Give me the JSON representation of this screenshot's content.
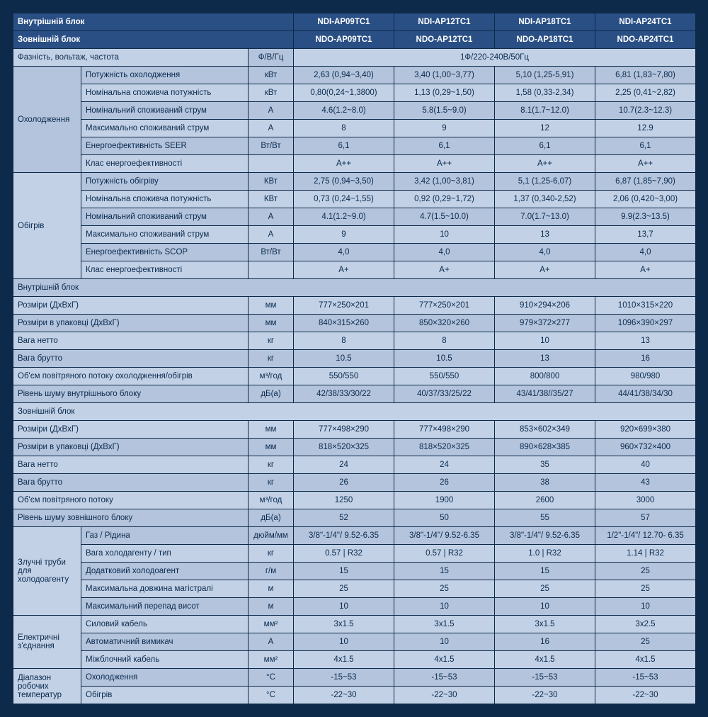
{
  "colors": {
    "header_bg": "#2a4f85",
    "header_fg": "#ffffff",
    "body_bg_light": "#c2d1e5",
    "body_bg_shade": "#b4c4dc",
    "border": "#0d2a4a",
    "text": "#0a2a4f",
    "page_bg": "#0d2a4a"
  },
  "fontsize": 11.5,
  "col_widths": {
    "grp": 96,
    "param": 236,
    "unit": 64,
    "data": 142
  },
  "header": {
    "indoor": "Внутрішній блок",
    "outdoor": "Зовнішній блок",
    "models_indoor": [
      "NDI-AP09TC1",
      "NDI-AP12TC1",
      "NDI-AP18TC1",
      "NDI-AP24TC1"
    ],
    "models_outdoor": [
      "NDO-AP09TC1",
      "NDO-AP12TC1",
      "NDO-AP18TC1",
      "NDO-AP24TC1"
    ]
  },
  "phase": {
    "label": "Фазність, вольтаж, частота",
    "unit": "Ф/В/Гц",
    "value": "1Ф/220-240В/50Гц"
  },
  "cooling": {
    "group": "Охолодження",
    "rows": [
      {
        "label": "Потужність охолодження",
        "unit": "кВт",
        "v": [
          "2,63 (0,94~3,40)",
          "3,40 (1,00~3,77)",
          "5,10 (1,25-5,91)",
          "6,81 (1,83~7,80)"
        ],
        "shade": true
      },
      {
        "label": "Номінальна споживча потужність",
        "unit": "кВт",
        "v": [
          "0,80(0,24~1,3800)",
          "1,13 (0,29~1,50)",
          "1,58 (0,33-2,34)",
          "2,25 (0,41~2,82)"
        ],
        "shade": false
      },
      {
        "label": "Номінальний споживаний струм",
        "unit": "А",
        "v": [
          "4.6(1.2~8.0)",
          "5.8(1.5~9.0)",
          "8.1(1.7~12.0)",
          "10.7(2.3~12.3)"
        ],
        "shade": true
      },
      {
        "label": "Максимально споживаний струм",
        "unit": "А",
        "v": [
          "8",
          "9",
          "12",
          "12.9"
        ],
        "shade": false
      },
      {
        "label": "Енергоефективність SEER",
        "unit": "Вт/Вт",
        "v": [
          "6,1",
          "6,1",
          "6,1",
          "6,1"
        ],
        "shade": true
      },
      {
        "label": "Клас енергоефективності",
        "unit": "",
        "v": [
          "A++",
          "A++",
          "A++",
          "A++"
        ],
        "shade": false
      }
    ]
  },
  "heating": {
    "group": "Обігрів",
    "rows": [
      {
        "label": "Потужність обігріву",
        "unit": "КВт",
        "v": [
          "2,75 (0,94~3,50)",
          "3,42 (1,00~3,81)",
          "5,1 (1,25-6,07)",
          "6,87 (1,85~7,90)"
        ],
        "shade": true
      },
      {
        "label": "Номінальна споживча потужність",
        "unit": "КВт",
        "v": [
          "0,73 (0,24~1,55)",
          "0,92 (0,29~1,72)",
          "1,37 (0,340-2,52)",
          "2,06 (0,420~3,00)"
        ],
        "shade": false
      },
      {
        "label": "Номінальний споживаний струм",
        "unit": "А",
        "v": [
          "4.1(1.2~9.0)",
          "4.7(1.5~10.0)",
          "7.0(1.7~13.0)",
          "9.9(2.3~13.5)"
        ],
        "shade": true
      },
      {
        "label": "Максимально споживаний струм",
        "unit": "А",
        "v": [
          "9",
          "10",
          "13",
          "13,7"
        ],
        "shade": false
      },
      {
        "label": "Енергоефективність SCOP",
        "unit": "Вт/Вт",
        "v": [
          "4,0",
          "4,0",
          "4,0",
          "4,0"
        ],
        "shade": true
      },
      {
        "label": "Клас енергоефективності",
        "unit": "",
        "v": [
          "A+",
          "A+",
          "A+",
          "A+"
        ],
        "shade": false
      }
    ]
  },
  "indoor_block": {
    "title": "Внутрішній блок",
    "rows": [
      {
        "label": "Розміри (ДхВхГ)",
        "unit": "мм",
        "v": [
          "777×250×201",
          "777×250×201",
          "910×294×206",
          "1010×315×220"
        ],
        "shade": false
      },
      {
        "label": "Розміри в упаковці (ДхВхГ)",
        "unit": "мм",
        "v": [
          "840×315×260",
          "850×320×260",
          "979×372×277",
          "1096×390×297"
        ],
        "shade": true
      },
      {
        "label": "Вага нетто",
        "unit": "кг",
        "v": [
          "8",
          "8",
          "10",
          "13"
        ],
        "shade": false
      },
      {
        "label": "Вага брутто",
        "unit": "кг",
        "v": [
          "10.5",
          "10.5",
          "13",
          "16"
        ],
        "shade": true
      },
      {
        "label": "Об'єм повітряного потоку охолодження/обігрів",
        "unit": "м³/год",
        "v": [
          "550/550",
          "550/550",
          "800/800",
          "980/980"
        ],
        "shade": false
      },
      {
        "label": "Рівень шуму внутрішнього блоку",
        "unit": "дБ(а)",
        "v": [
          "42/38/33/30/22",
          "40/37/33/25/22",
          "43/41/38//35/27",
          "44/41/38/34/30"
        ],
        "shade": true
      }
    ]
  },
  "outdoor_block": {
    "title": "Зовнішній блок",
    "rows": [
      {
        "label": "Розміри (ДхВхГ)",
        "unit": "мм",
        "v": [
          "777×498×290",
          "777×498×290",
          "853×602×349",
          "920×699×380"
        ],
        "shade": false
      },
      {
        "label": "Розміри в упаковці (ДхВхГ)",
        "unit": "мм",
        "v": [
          "818×520×325",
          "818×520×325",
          "890×628×385",
          "960×732×400"
        ],
        "shade": true
      },
      {
        "label": "Вага нетто",
        "unit": "кг",
        "v": [
          "24",
          "24",
          "35",
          "40"
        ],
        "shade": false
      },
      {
        "label": "Вага брутто",
        "unit": "кг",
        "v": [
          "26",
          "26",
          "38",
          "43"
        ],
        "shade": true
      },
      {
        "label": "Об'єм повітряного потоку",
        "unit": "м³/год",
        "v": [
          "1250",
          "1900",
          "2600",
          "3000"
        ],
        "shade": false
      },
      {
        "label": "Рівень шуму зовнішного блоку",
        "unit": "дБ(а)",
        "v": [
          "52",
          "50",
          "55",
          "57"
        ],
        "shade": true
      }
    ]
  },
  "pipes": {
    "group": "Злучні труби для холодоагенту",
    "rows": [
      {
        "label": "Газ / Рідина",
        "unit": "дюйм/мм",
        "v": [
          "3/8\"-1/4\"/ 9.52-6.35",
          "3/8\"-1/4\"/ 9.52-6.35",
          "3/8\"-1/4\"/ 9.52-6.35",
          "1/2\"-1/4\"/ 12.70- 6.35"
        ],
        "shade": true
      },
      {
        "label": "Вага холодагенту / тип",
        "unit": "кг",
        "v": [
          "0.57 | R32",
          "0.57 | R32",
          "1.0 | R32",
          "1.14 | R32"
        ],
        "shade": false
      },
      {
        "label": "Додатковий холодоагент",
        "unit": "г/м",
        "v": [
          "15",
          "15",
          "15",
          "25"
        ],
        "shade": true
      },
      {
        "label": "Максимальна довжина магістралі",
        "unit": "м",
        "v": [
          "25",
          "25",
          "25",
          "25"
        ],
        "shade": false
      },
      {
        "label": "Максимальний перепад висот",
        "unit": "м",
        "v": [
          "10",
          "10",
          "10",
          "10"
        ],
        "shade": true
      }
    ]
  },
  "electrical": {
    "group": "Електричні з'єднання",
    "rows": [
      {
        "label": "Силовий кабель",
        "unit": "мм²",
        "v": [
          "3х1.5",
          "3х1.5",
          "3х1.5",
          "3х2.5"
        ],
        "shade": false
      },
      {
        "label": "Автоматичний вимикач",
        "unit": "А",
        "v": [
          "10",
          "10",
          "16",
          "25"
        ],
        "shade": true
      },
      {
        "label": "Міжблочний кабель",
        "unit": "мм²",
        "v": [
          "4х1.5",
          "4х1.5",
          "4х1.5",
          "4х1.5"
        ],
        "shade": false
      }
    ]
  },
  "temps": {
    "group": "Діапазон робочих температур",
    "rows": [
      {
        "label": "Охолодження",
        "unit": "°C",
        "v": [
          "-15~53",
          "-15~53",
          "-15~53",
          "-15~53"
        ],
        "shade": true
      },
      {
        "label": "Обігрів",
        "unit": "°C",
        "v": [
          "-22~30",
          "-22~30",
          "-22~30",
          "-22~30"
        ],
        "shade": false
      }
    ]
  }
}
